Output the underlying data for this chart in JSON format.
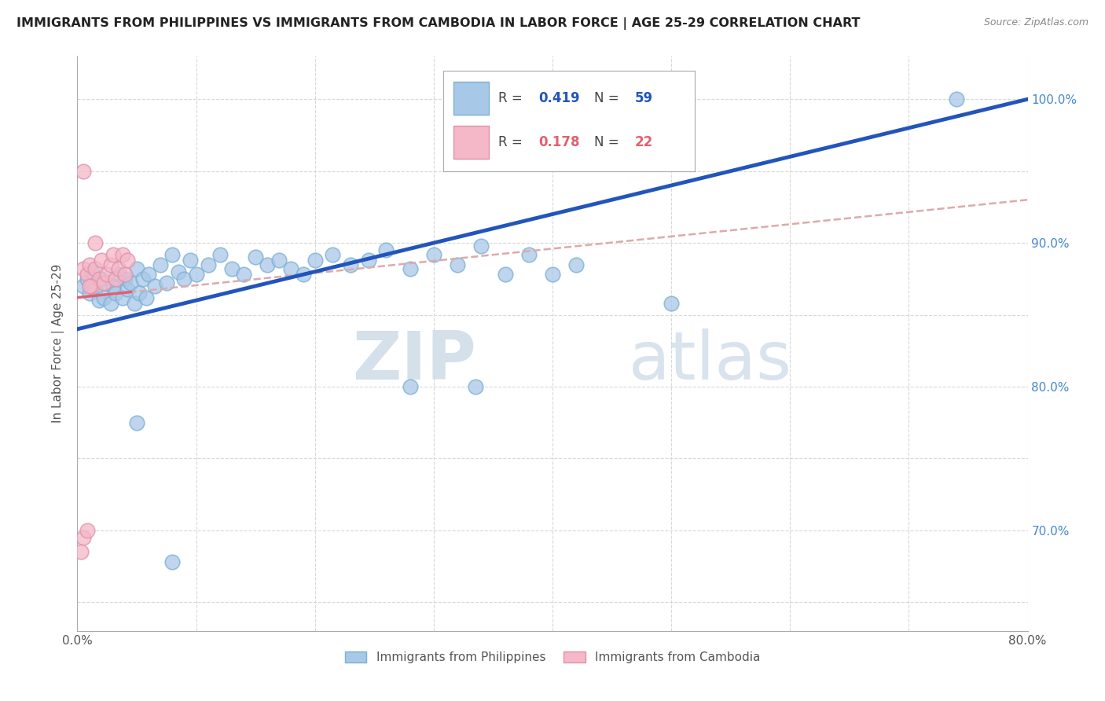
{
  "title": "IMMIGRANTS FROM PHILIPPINES VS IMMIGRANTS FROM CAMBODIA IN LABOR FORCE | AGE 25-29 CORRELATION CHART",
  "source": "Source: ZipAtlas.com",
  "ylabel": "In Labor Force | Age 25-29",
  "xlim": [
    0.0,
    0.8
  ],
  "ylim": [
    0.63,
    1.03
  ],
  "blue_R": "0.419",
  "blue_N": "59",
  "pink_R": "0.178",
  "pink_N": "22",
  "blue_color": "#a8c8e8",
  "blue_edge_color": "#7bafd4",
  "pink_color": "#f4b8c8",
  "pink_edge_color": "#e090a8",
  "trend_blue_color": "#2255bb",
  "trend_pink_color": "#e06070",
  "trend_dashed_color": "#ddaaaa",
  "grid_color": "#d8d8d8",
  "legend_label_blue": "Immigrants from Philippines",
  "legend_label_pink": "Immigrants from Cambodia",
  "watermark_zip": "ZIP",
  "watermark_atlas": "atlas",
  "figsize": [
    14.06,
    8.92
  ],
  "dpi": 100,
  "blue_scatter_x": [
    0.005,
    0.008,
    0.01,
    0.012,
    0.015,
    0.018,
    0.02,
    0.022,
    0.025,
    0.028,
    0.03,
    0.032,
    0.035,
    0.038,
    0.04,
    0.042,
    0.045,
    0.048,
    0.05,
    0.052,
    0.055,
    0.058,
    0.06,
    0.065,
    0.07,
    0.075,
    0.08,
    0.085,
    0.09,
    0.095,
    0.1,
    0.11,
    0.12,
    0.13,
    0.14,
    0.15,
    0.16,
    0.17,
    0.18,
    0.19,
    0.2,
    0.215,
    0.23,
    0.245,
    0.26,
    0.28,
    0.3,
    0.32,
    0.34,
    0.36,
    0.38,
    0.4,
    0.42,
    0.28,
    0.335,
    0.05,
    0.5,
    0.74,
    0.08
  ],
  "blue_scatter_y": [
    0.87,
    0.875,
    0.865,
    0.88,
    0.868,
    0.86,
    0.875,
    0.862,
    0.872,
    0.858,
    0.87,
    0.865,
    0.878,
    0.862,
    0.875,
    0.868,
    0.872,
    0.858,
    0.882,
    0.865,
    0.875,
    0.862,
    0.878,
    0.87,
    0.885,
    0.872,
    0.892,
    0.88,
    0.875,
    0.888,
    0.878,
    0.885,
    0.892,
    0.882,
    0.878,
    0.89,
    0.885,
    0.888,
    0.882,
    0.878,
    0.888,
    0.892,
    0.885,
    0.888,
    0.895,
    0.882,
    0.892,
    0.885,
    0.898,
    0.878,
    0.892,
    0.878,
    0.885,
    0.8,
    0.8,
    0.775,
    0.858,
    1.0,
    0.678
  ],
  "pink_scatter_x": [
    0.005,
    0.008,
    0.01,
    0.012,
    0.015,
    0.018,
    0.02,
    0.022,
    0.025,
    0.028,
    0.03,
    0.032,
    0.035,
    0.038,
    0.04,
    0.042,
    0.005,
    0.015,
    0.003,
    0.005,
    0.008,
    0.01
  ],
  "pink_scatter_y": [
    0.882,
    0.878,
    0.885,
    0.87,
    0.882,
    0.875,
    0.888,
    0.872,
    0.878,
    0.885,
    0.892,
    0.875,
    0.882,
    0.892,
    0.878,
    0.888,
    0.95,
    0.9,
    0.685,
    0.695,
    0.7,
    0.87
  ],
  "blue_trend_x0": 0.0,
  "blue_trend_y0": 0.84,
  "blue_trend_x1": 0.8,
  "blue_trend_y1": 1.0,
  "pink_trend_x0": 0.0,
  "pink_trend_y0": 0.862,
  "pink_trend_x1": 0.8,
  "pink_trend_y1": 0.93
}
